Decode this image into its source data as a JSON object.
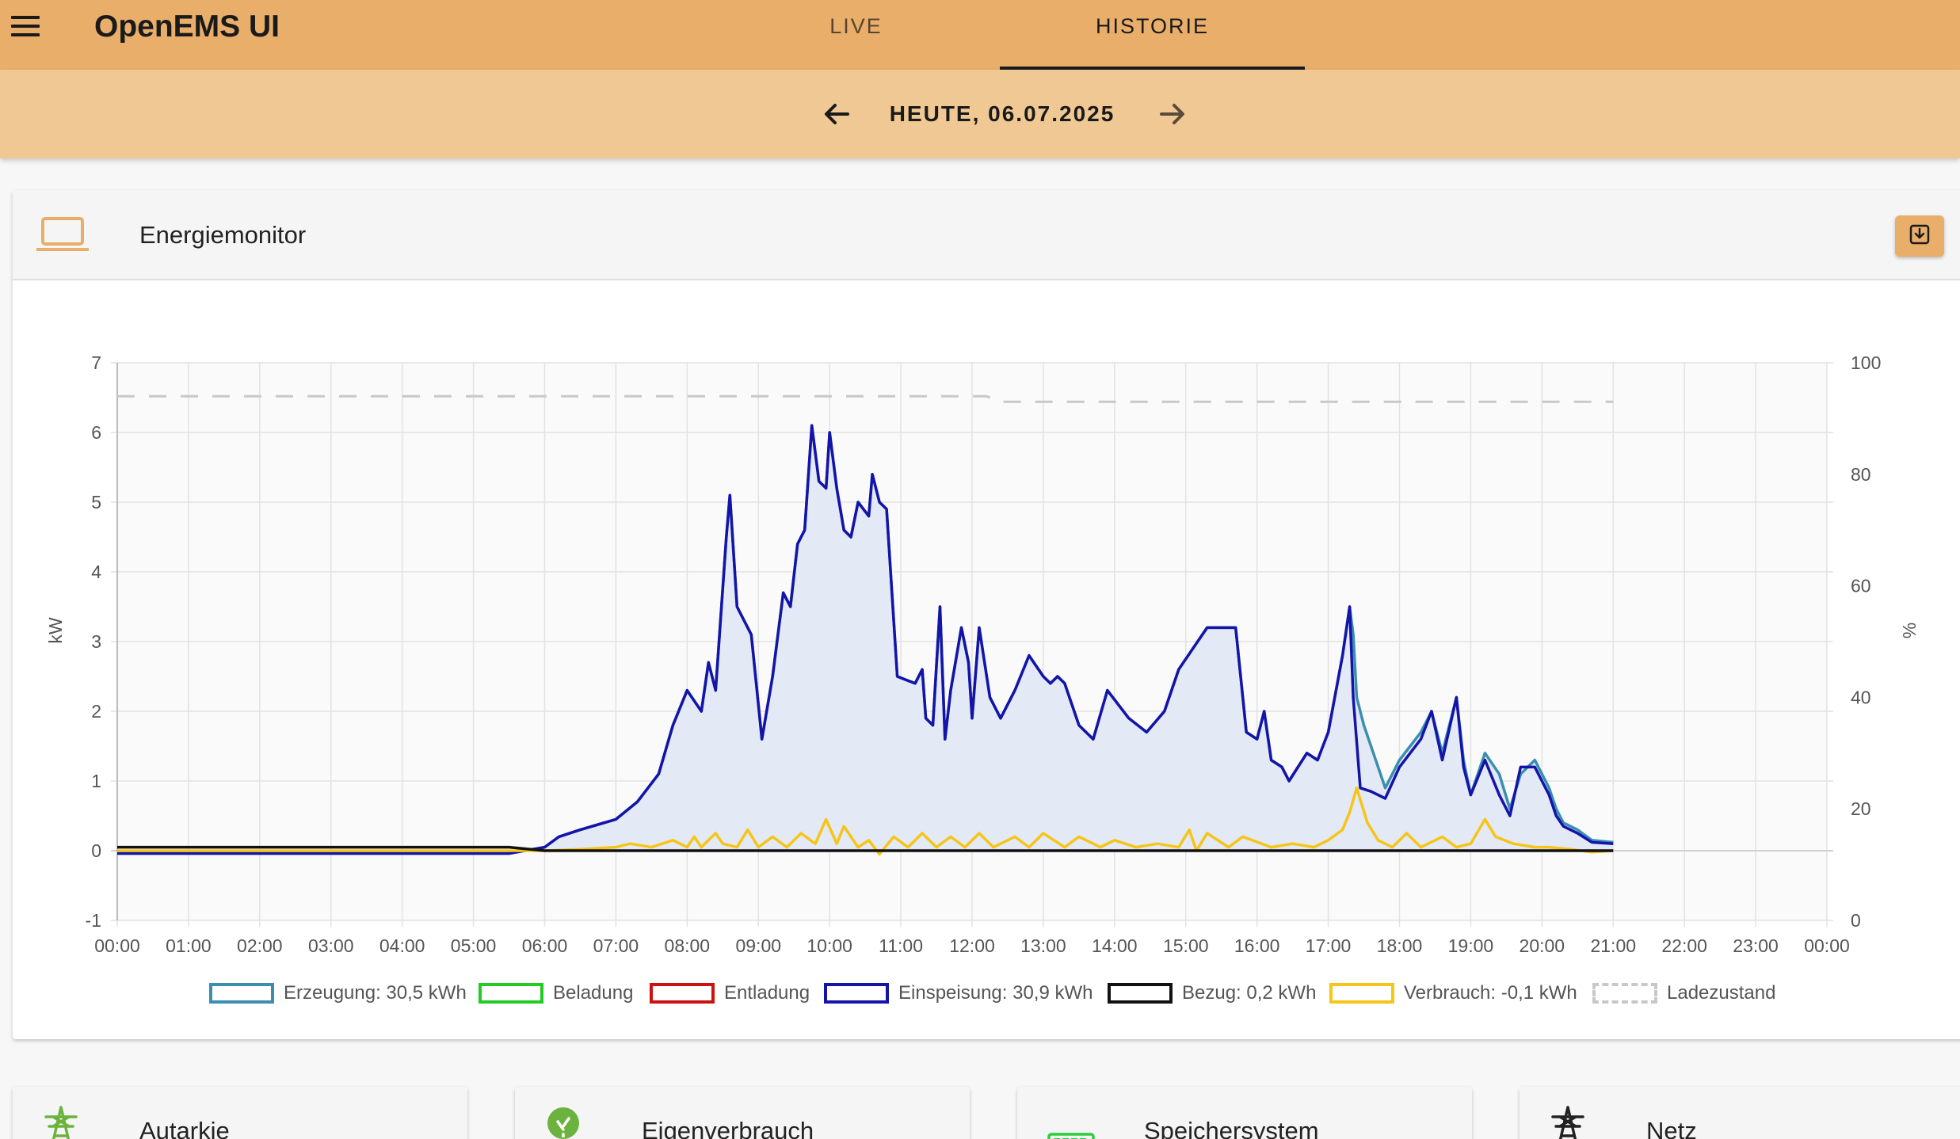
{
  "app": {
    "title": "OpenEMS UI"
  },
  "tabs": [
    {
      "label": "LIVE",
      "active": false
    },
    {
      "label": "HISTORIE",
      "active": true
    }
  ],
  "datebar": {
    "label": "HEUTE, 06.07.2025"
  },
  "card": {
    "title": "Energiemonitor"
  },
  "icons": {
    "menu": "menu-icon",
    "prev": "arrow-left-icon",
    "next": "arrow-right-icon",
    "card": "laptop-icon",
    "download": "download-icon"
  },
  "colors": {
    "header": "#e8ae6a",
    "datebar": "#f0c893",
    "erzeugung": "#3a8fb0",
    "beladung": "#22cc22",
    "entladung": "#cc1111",
    "einspeisung": "#1414a8",
    "bezug": "#111111",
    "verbrauch": "#f5c518",
    "ladezustand": "#c8c8c8"
  },
  "chart_data": {
    "type": "line",
    "ylabel": "kW",
    "y2label": "%",
    "ylim": [
      -1,
      7
    ],
    "y2lim": [
      0,
      100
    ],
    "yticks": [
      "7",
      "6",
      "5",
      "4",
      "3",
      "2",
      "1",
      "0",
      "-1"
    ],
    "y2ticks": [
      "100",
      "80",
      "60",
      "40",
      "20",
      "0"
    ],
    "xticks": [
      "00:00",
      "01:00",
      "02:00",
      "03:00",
      "04:00",
      "05:00",
      "06:00",
      "07:00",
      "08:00",
      "09:00",
      "10:00",
      "11:00",
      "12:00",
      "13:00",
      "14:00",
      "15:00",
      "16:00",
      "17:00",
      "18:00",
      "19:00",
      "20:00",
      "21:00",
      "22:00",
      "23:00",
      "00:00"
    ],
    "grid": true,
    "legend_position": "bottom",
    "legend": [
      {
        "label": "Erzeugung: 30,5 kWh",
        "color": "#3a8fb0",
        "style": "solid"
      },
      {
        "label": "Beladung",
        "color": "#22cc22",
        "style": "solid"
      },
      {
        "label": "Entladung",
        "color": "#cc1111",
        "style": "solid"
      },
      {
        "label": "Einspeisung: 30,9 kWh",
        "color": "#1414a8",
        "style": "solid"
      },
      {
        "label": "Bezug: 0,2 kWh",
        "color": "#111111",
        "style": "solid"
      },
      {
        "label": "Verbrauch: -0,1 kWh",
        "color": "#f5c518",
        "style": "solid"
      },
      {
        "label": "Ladezustand",
        "color": "#c8c8c8",
        "style": "dashed"
      }
    ],
    "series": [
      {
        "name": "Erzeugung",
        "axis": "kW",
        "color": "#3a8fb0",
        "fill": "#e4e9f6",
        "points": [
          [
            0,
            -0.04
          ],
          [
            5.5,
            -0.04
          ],
          [
            6.0,
            0.05
          ],
          [
            6.2,
            0.2
          ],
          [
            6.5,
            0.3
          ],
          [
            7.0,
            0.45
          ],
          [
            7.3,
            0.7
          ],
          [
            7.6,
            1.1
          ],
          [
            7.8,
            1.8
          ],
          [
            8.0,
            2.3
          ],
          [
            8.2,
            2.0
          ],
          [
            8.3,
            2.7
          ],
          [
            8.4,
            2.3
          ],
          [
            8.55,
            4.5
          ],
          [
            8.6,
            5.1
          ],
          [
            8.7,
            3.5
          ],
          [
            8.9,
            3.1
          ],
          [
            9.05,
            1.6
          ],
          [
            9.2,
            2.5
          ],
          [
            9.35,
            3.7
          ],
          [
            9.45,
            3.5
          ],
          [
            9.55,
            4.4
          ],
          [
            9.65,
            4.6
          ],
          [
            9.75,
            6.1
          ],
          [
            9.85,
            5.3
          ],
          [
            9.95,
            5.2
          ],
          [
            10.0,
            6.0
          ],
          [
            10.1,
            5.2
          ],
          [
            10.2,
            4.6
          ],
          [
            10.3,
            4.5
          ],
          [
            10.4,
            5.0
          ],
          [
            10.55,
            4.8
          ],
          [
            10.6,
            5.4
          ],
          [
            10.7,
            5.0
          ],
          [
            10.8,
            4.9
          ],
          [
            10.95,
            2.5
          ],
          [
            11.2,
            2.4
          ],
          [
            11.3,
            2.6
          ],
          [
            11.35,
            1.9
          ],
          [
            11.45,
            1.8
          ],
          [
            11.55,
            3.5
          ],
          [
            11.62,
            1.6
          ],
          [
            11.7,
            2.3
          ],
          [
            11.85,
            3.2
          ],
          [
            11.95,
            2.7
          ],
          [
            12.0,
            1.9
          ],
          [
            12.1,
            3.2
          ],
          [
            12.25,
            2.2
          ],
          [
            12.4,
            1.9
          ],
          [
            12.6,
            2.3
          ],
          [
            12.8,
            2.8
          ],
          [
            13.0,
            2.5
          ],
          [
            13.1,
            2.4
          ],
          [
            13.2,
            2.5
          ],
          [
            13.3,
            2.4
          ],
          [
            13.5,
            1.8
          ],
          [
            13.7,
            1.6
          ],
          [
            13.9,
            2.3
          ],
          [
            14.2,
            1.9
          ],
          [
            14.45,
            1.7
          ],
          [
            14.7,
            2.0
          ],
          [
            14.9,
            2.6
          ],
          [
            15.1,
            2.9
          ],
          [
            15.3,
            3.2
          ],
          [
            15.5,
            3.2
          ],
          [
            15.7,
            3.2
          ],
          [
            15.85,
            1.7
          ],
          [
            16.0,
            1.6
          ],
          [
            16.1,
            2.0
          ],
          [
            16.2,
            1.3
          ],
          [
            16.35,
            1.2
          ],
          [
            16.45,
            1.0
          ],
          [
            16.7,
            1.4
          ],
          [
            16.85,
            1.3
          ],
          [
            17.0,
            1.7
          ],
          [
            17.2,
            2.8
          ],
          [
            17.3,
            3.5
          ],
          [
            17.35,
            3.1
          ],
          [
            17.4,
            2.2
          ],
          [
            17.5,
            1.8
          ],
          [
            17.8,
            0.9
          ],
          [
            18.0,
            1.3
          ],
          [
            18.3,
            1.7
          ],
          [
            18.45,
            2.0
          ],
          [
            18.6,
            1.4
          ],
          [
            18.8,
            2.2
          ],
          [
            18.9,
            1.3
          ],
          [
            19.0,
            0.8
          ],
          [
            19.2,
            1.4
          ],
          [
            19.4,
            1.1
          ],
          [
            19.55,
            0.6
          ],
          [
            19.7,
            1.1
          ],
          [
            19.9,
            1.3
          ],
          [
            20.0,
            1.1
          ],
          [
            20.1,
            0.9
          ],
          [
            20.2,
            0.6
          ],
          [
            20.3,
            0.4
          ],
          [
            20.5,
            0.3
          ],
          [
            20.7,
            0.15
          ],
          [
            21.0,
            0.12
          ]
        ]
      },
      {
        "name": "Einspeisung",
        "axis": "kW",
        "color": "#1414a8",
        "points": [
          [
            0,
            -0.04
          ],
          [
            5.5,
            -0.04
          ],
          [
            6.0,
            0.05
          ],
          [
            6.2,
            0.2
          ],
          [
            6.5,
            0.3
          ],
          [
            7.0,
            0.45
          ],
          [
            7.3,
            0.7
          ],
          [
            7.6,
            1.1
          ],
          [
            7.8,
            1.8
          ],
          [
            8.0,
            2.3
          ],
          [
            8.2,
            2.0
          ],
          [
            8.3,
            2.7
          ],
          [
            8.4,
            2.3
          ],
          [
            8.55,
            4.5
          ],
          [
            8.6,
            5.1
          ],
          [
            8.7,
            3.5
          ],
          [
            8.9,
            3.1
          ],
          [
            9.05,
            1.6
          ],
          [
            9.2,
            2.5
          ],
          [
            9.35,
            3.7
          ],
          [
            9.45,
            3.5
          ],
          [
            9.55,
            4.4
          ],
          [
            9.65,
            4.6
          ],
          [
            9.75,
            6.1
          ],
          [
            9.85,
            5.3
          ],
          [
            9.95,
            5.2
          ],
          [
            10.0,
            6.0
          ],
          [
            10.1,
            5.2
          ],
          [
            10.2,
            4.6
          ],
          [
            10.3,
            4.5
          ],
          [
            10.4,
            5.0
          ],
          [
            10.55,
            4.8
          ],
          [
            10.6,
            5.4
          ],
          [
            10.7,
            5.0
          ],
          [
            10.8,
            4.9
          ],
          [
            10.95,
            2.5
          ],
          [
            11.2,
            2.4
          ],
          [
            11.3,
            2.6
          ],
          [
            11.35,
            1.9
          ],
          [
            11.45,
            1.8
          ],
          [
            11.55,
            3.5
          ],
          [
            11.62,
            1.6
          ],
          [
            11.7,
            2.3
          ],
          [
            11.85,
            3.2
          ],
          [
            11.95,
            2.7
          ],
          [
            12.0,
            1.9
          ],
          [
            12.1,
            3.2
          ],
          [
            12.25,
            2.2
          ],
          [
            12.4,
            1.9
          ],
          [
            12.6,
            2.3
          ],
          [
            12.8,
            2.8
          ],
          [
            13.0,
            2.5
          ],
          [
            13.1,
            2.4
          ],
          [
            13.2,
            2.5
          ],
          [
            13.3,
            2.4
          ],
          [
            13.5,
            1.8
          ],
          [
            13.7,
            1.6
          ],
          [
            13.9,
            2.3
          ],
          [
            14.2,
            1.9
          ],
          [
            14.45,
            1.7
          ],
          [
            14.7,
            2.0
          ],
          [
            14.9,
            2.6
          ],
          [
            15.1,
            2.9
          ],
          [
            15.3,
            3.2
          ],
          [
            15.5,
            3.2
          ],
          [
            15.7,
            3.2
          ],
          [
            15.85,
            1.7
          ],
          [
            16.0,
            1.6
          ],
          [
            16.1,
            2.0
          ],
          [
            16.2,
            1.3
          ],
          [
            16.35,
            1.2
          ],
          [
            16.45,
            1.0
          ],
          [
            16.7,
            1.4
          ],
          [
            16.85,
            1.3
          ],
          [
            17.0,
            1.7
          ],
          [
            17.2,
            2.8
          ],
          [
            17.3,
            3.5
          ],
          [
            17.35,
            2.2
          ],
          [
            17.45,
            0.9
          ],
          [
            17.6,
            0.85
          ],
          [
            17.8,
            0.75
          ],
          [
            18.0,
            1.2
          ],
          [
            18.3,
            1.6
          ],
          [
            18.45,
            2.0
          ],
          [
            18.6,
            1.3
          ],
          [
            18.8,
            2.2
          ],
          [
            18.9,
            1.2
          ],
          [
            19.0,
            0.8
          ],
          [
            19.2,
            1.3
          ],
          [
            19.4,
            0.8
          ],
          [
            19.55,
            0.5
          ],
          [
            19.7,
            1.2
          ],
          [
            19.9,
            1.2
          ],
          [
            20.0,
            1.0
          ],
          [
            20.1,
            0.8
          ],
          [
            20.2,
            0.5
          ],
          [
            20.3,
            0.35
          ],
          [
            20.5,
            0.25
          ],
          [
            20.7,
            0.12
          ],
          [
            21.0,
            0.1
          ]
        ]
      },
      {
        "name": "Verbrauch",
        "axis": "kW",
        "color": "#f5c518",
        "points": [
          [
            0,
            0.0
          ],
          [
            5.5,
            0.0
          ],
          [
            6.0,
            0.0
          ],
          [
            6.5,
            0.02
          ],
          [
            7.0,
            0.05
          ],
          [
            7.2,
            0.1
          ],
          [
            7.5,
            0.05
          ],
          [
            7.8,
            0.15
          ],
          [
            8.0,
            0.05
          ],
          [
            8.1,
            0.2
          ],
          [
            8.2,
            0.05
          ],
          [
            8.4,
            0.25
          ],
          [
            8.5,
            0.1
          ],
          [
            8.7,
            0.05
          ],
          [
            8.85,
            0.3
          ],
          [
            9.0,
            0.05
          ],
          [
            9.2,
            0.2
          ],
          [
            9.4,
            0.05
          ],
          [
            9.6,
            0.25
          ],
          [
            9.8,
            0.1
          ],
          [
            9.95,
            0.45
          ],
          [
            10.1,
            0.1
          ],
          [
            10.2,
            0.35
          ],
          [
            10.4,
            0.05
          ],
          [
            10.55,
            0.15
          ],
          [
            10.7,
            -0.05
          ],
          [
            10.9,
            0.2
          ],
          [
            11.1,
            0.05
          ],
          [
            11.3,
            0.25
          ],
          [
            11.5,
            0.05
          ],
          [
            11.7,
            0.2
          ],
          [
            11.9,
            0.05
          ],
          [
            12.1,
            0.25
          ],
          [
            12.3,
            0.05
          ],
          [
            12.6,
            0.2
          ],
          [
            12.8,
            0.05
          ],
          [
            13.0,
            0.25
          ],
          [
            13.3,
            0.05
          ],
          [
            13.5,
            0.2
          ],
          [
            13.8,
            0.05
          ],
          [
            14.0,
            0.15
          ],
          [
            14.3,
            0.05
          ],
          [
            14.6,
            0.1
          ],
          [
            14.9,
            0.05
          ],
          [
            15.05,
            0.3
          ],
          [
            15.15,
            0.0
          ],
          [
            15.3,
            0.25
          ],
          [
            15.6,
            0.05
          ],
          [
            15.8,
            0.2
          ],
          [
            16.2,
            0.05
          ],
          [
            16.5,
            0.1
          ],
          [
            16.8,
            0.05
          ],
          [
            17.0,
            0.15
          ],
          [
            17.2,
            0.3
          ],
          [
            17.3,
            0.55
          ],
          [
            17.4,
            0.9
          ],
          [
            17.55,
            0.4
          ],
          [
            17.7,
            0.15
          ],
          [
            17.9,
            0.05
          ],
          [
            18.1,
            0.25
          ],
          [
            18.3,
            0.05
          ],
          [
            18.6,
            0.2
          ],
          [
            18.8,
            0.05
          ],
          [
            19.0,
            0.1
          ],
          [
            19.2,
            0.45
          ],
          [
            19.35,
            0.2
          ],
          [
            19.6,
            0.1
          ],
          [
            19.9,
            0.05
          ],
          [
            20.1,
            0.05
          ],
          [
            20.4,
            0.02
          ],
          [
            20.7,
            -0.02
          ],
          [
            21.0,
            0.0
          ]
        ]
      },
      {
        "name": "Bezug",
        "axis": "kW",
        "color": "#111111",
        "points": [
          [
            0,
            0.05
          ],
          [
            5.5,
            0.05
          ],
          [
            6.0,
            0.0
          ],
          [
            21.0,
            0.0
          ]
        ]
      },
      {
        "name": "Ladezustand",
        "axis": "%",
        "color": "#c8c8c8",
        "dashed": true,
        "points": [
          [
            0,
            94
          ],
          [
            12.2,
            94
          ],
          [
            12.4,
            93
          ],
          [
            21.0,
            93
          ]
        ]
      }
    ]
  },
  "widgets": [
    {
      "title": "Autarkie",
      "icon": "power-tower-icon"
    },
    {
      "title": "Eigenverbrauch",
      "icon": "leaf-icon"
    },
    {
      "title": "Speichersystem",
      "icon": "battery-icon"
    },
    {
      "title": "Netz",
      "icon": "power-tower-icon"
    }
  ]
}
